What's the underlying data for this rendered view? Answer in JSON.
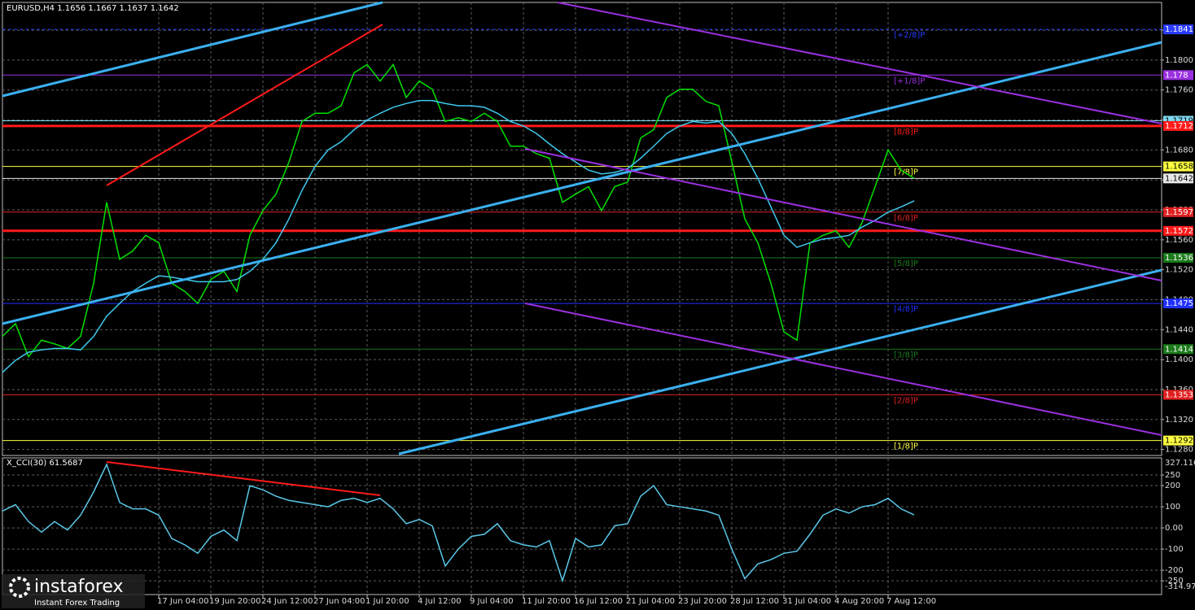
{
  "header": "EURUSD,H4  1.1656 1.1667 1.1637 1.1642",
  "logo": {
    "brand": "instaforex",
    "tagline": "Instant Forex Trading"
  },
  "chart_data": [
    {
      "type": "line",
      "categories": [
        null,
        null,
        null,
        null,
        null,
        null,
        null,
        null,
        null,
        null,
        null,
        null,
        "17 Jun 04:00",
        null,
        null,
        null,
        "19 Jun 20:00",
        null,
        null,
        null,
        "24 Jun 12:00",
        null,
        null,
        null,
        "27 Jun 04:00",
        null,
        null,
        null,
        "1 Jul 20:00",
        null,
        null,
        null,
        "4 Jul 12:00",
        null,
        null,
        null,
        "9 Jul 04:00",
        null,
        null,
        null,
        "11 Jul 20:00",
        null,
        null,
        null,
        "16 Jul 12:00",
        null,
        null,
        null,
        "21 Jul 04:00",
        null,
        null,
        null,
        "23 Jul 20:00",
        null,
        null,
        null,
        "28 Jul 12:00",
        null,
        null,
        null,
        "31 Jul 04:00",
        null,
        null,
        null,
        "4 Aug 20:00",
        null,
        null,
        null,
        "7 Aug 12:00",
        null,
        null
      ],
      "series": [
        {
          "color": "#00e000",
          "values": [
            1.1431,
            1.1448,
            1.1404,
            1.1426,
            1.1421,
            1.1415,
            1.1431,
            1.1502,
            1.161,
            1.1534,
            1.1545,
            1.1566,
            1.1556,
            1.1502,
            1.1491,
            1.1475,
            1.1507,
            1.1518,
            1.1491,
            1.1566,
            1.1599,
            1.1621,
            1.1664,
            1.1718,
            1.1729,
            1.1729,
            1.1739,
            1.1783,
            1.1794,
            1.1772,
            1.1794,
            1.175,
            1.1772,
            1.1761,
            1.1718,
            1.1723,
            1.1718,
            1.1729,
            1.1718,
            1.1685,
            1.1685,
            1.1675,
            1.1669,
            1.161,
            1.1621,
            1.1631,
            1.1599,
            1.1631,
            1.1637,
            1.1696,
            1.1707,
            1.175,
            1.1761,
            1.1761,
            1.1745,
            1.1739,
            1.1664,
            1.1588,
            1.1556,
            1.1502,
            1.1437,
            1.1426,
            1.1556,
            1.1566,
            1.1572,
            1.155,
            1.1583,
            1.1631,
            1.168,
            1.1653,
            1.1642
          ]
        },
        {
          "color": "#3ec8ec",
          "values": [
            1.1383,
            1.1399,
            1.141,
            1.1413,
            1.1415,
            1.1415,
            1.1413,
            1.1431,
            1.1458,
            1.1475,
            1.1491,
            1.1502,
            1.1512,
            1.151,
            1.1507,
            1.1504,
            1.1504,
            1.1504,
            1.1507,
            1.1518,
            1.1534,
            1.1556,
            1.1588,
            1.1626,
            1.1658,
            1.168,
            1.1691,
            1.1707,
            1.172,
            1.1729,
            1.1737,
            1.1742,
            1.1746,
            1.1746,
            1.1742,
            1.1739,
            1.1739,
            1.1737,
            1.1729,
            1.1718,
            1.1712,
            1.1702,
            1.1688,
            1.1675,
            1.1664,
            1.1653,
            1.1648,
            1.165,
            1.1655,
            1.1669,
            1.1685,
            1.1702,
            1.1712,
            1.1718,
            1.1716,
            1.1718,
            1.1702,
            1.1675,
            1.1642,
            1.1604,
            1.1566,
            1.155,
            1.1556,
            1.1561,
            1.1563,
            1.1566,
            1.1577,
            1.1586,
            1.1597,
            1.1604,
            1.1612
          ]
        }
      ],
      "ylim": [
        1.1272,
        1.1877
      ],
      "yticks": [
        {
          "value": 1.128,
          "label": "1.1280"
        },
        {
          "value": 1.132,
          "label": "1.1320"
        },
        {
          "value": 1.136,
          "label": "1.1360"
        },
        {
          "value": 1.14,
          "label": "1.1400"
        },
        {
          "value": 1.144,
          "label": "1.1440"
        },
        {
          "value": 1.148,
          "label": "1.1480"
        },
        {
          "value": 1.152,
          "label": "1.1520"
        },
        {
          "value": 1.156,
          "label": "1.1560"
        },
        {
          "value": 1.16,
          "label": "1.1600"
        },
        {
          "value": 1.164,
          "label": "1.1640"
        },
        {
          "value": 1.168,
          "label": "1.1680"
        },
        {
          "value": 1.172,
          "label": "1.1720"
        },
        {
          "value": 1.176,
          "label": "1.1760"
        },
        {
          "value": 1.18,
          "label": "1.1800"
        },
        {
          "value": 1.184,
          "label": "1.1840"
        }
      ],
      "grid": true,
      "levels": [
        {
          "value": 1.1841,
          "color": "#2a3cff",
          "width": 1,
          "dashed": true,
          "tag": "[+2/8]P"
        },
        {
          "value": 1.178,
          "color": "#9b30e0",
          "width": 1,
          "dashed": false,
          "tag": "[+1/8]P"
        },
        {
          "value": 1.1719,
          "color": "#7fd8f0",
          "width": 1,
          "dashed": false,
          "tag": null
        },
        {
          "value": 1.1712,
          "color": "#ff1a1a",
          "width": 3,
          "dashed": false,
          "tag": "[8/8]P"
        },
        {
          "value": 1.1658,
          "color": "#ffff40",
          "width": 1,
          "dashed": false,
          "tag": "[7/8]P"
        },
        {
          "value": 1.1642,
          "color": "#e8e8e8",
          "width": 1,
          "dashed": false,
          "tag": null
        },
        {
          "value": 1.1597,
          "color": "#e02020",
          "width": 1,
          "dashed": false,
          "tag": "[6/8]P"
        },
        {
          "value": 1.1572,
          "color": "#ff1a1a",
          "width": 3,
          "dashed": false,
          "tag": null
        },
        {
          "value": 1.1536,
          "color": "#1a7a1a",
          "width": 1,
          "dashed": false,
          "tag": "[5/8]P"
        },
        {
          "value": 1.1475,
          "color": "#2030ff",
          "width": 1,
          "dashed": false,
          "tag": "[4/8]P"
        },
        {
          "value": 1.1414,
          "color": "#1a7a1a",
          "width": 1,
          "dashed": false,
          "tag": "[3/8]P"
        },
        {
          "value": 1.1353,
          "color": "#e02020",
          "width": 1,
          "dashed": false,
          "tag": "[2/8]P"
        },
        {
          "value": 1.1292,
          "color": "#ffff40",
          "width": 1,
          "dashed": false,
          "tag": "[1/8]P"
        }
      ]
    },
    {
      "type": "line",
      "title": "X_CCI(30) 61.5687",
      "series": [
        {
          "color": "#5ac8e8",
          "values": [
            80,
            110,
            30,
            -20,
            30,
            -10,
            60,
            170,
            300,
            120,
            90,
            90,
            60,
            -50,
            -80,
            -120,
            -40,
            -10,
            -60,
            200,
            180,
            150,
            130,
            120,
            110,
            100,
            130,
            140,
            120,
            140,
            90,
            20,
            40,
            10,
            -180,
            -100,
            -40,
            -30,
            20,
            -60,
            -80,
            -90,
            -60,
            -250,
            -50,
            -90,
            -80,
            10,
            20,
            150,
            200,
            110,
            100,
            90,
            80,
            60,
            -100,
            -240,
            -170,
            -150,
            -120,
            -110,
            -30,
            60,
            90,
            70,
            100,
            110,
            140,
            90,
            61.5687
          ]
        }
      ],
      "ylim": [
        -314.975,
        327.116
      ],
      "yticks": [
        -250,
        -200,
        -100,
        {
          "value": 0,
          "label": "0.00"
        },
        100,
        200,
        250
      ],
      "grid": true
    }
  ]
}
